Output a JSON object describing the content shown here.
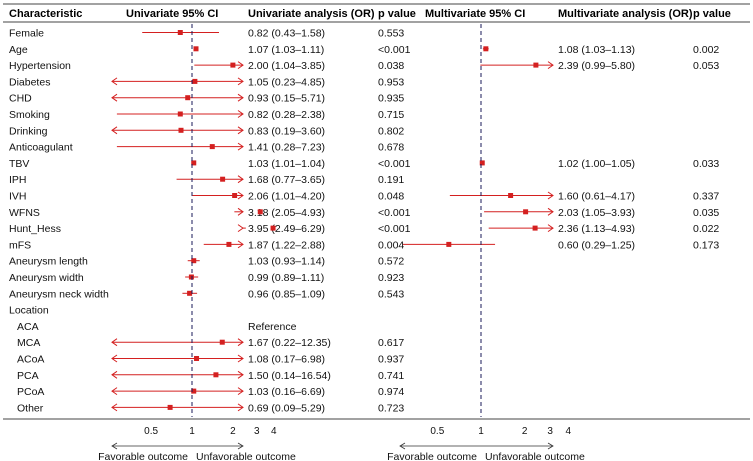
{
  "chart_data": {
    "type": "forest",
    "title": "",
    "columns": {
      "characteristic": "Characteristic",
      "uni_ci": "Univariate 95% CI",
      "uni_or": "Univariate analysis (OR)",
      "uni_p": "p value",
      "multi_ci": "Multivariate 95% CI",
      "multi_or": "Multivariate analysis (OR)",
      "multi_p": "p value"
    },
    "rows": [
      {
        "label": "Female",
        "indent": false,
        "uni": {
          "or": 0.82,
          "lo": 0.43,
          "hi": 1.58,
          "text": "0.82 (0.43–1.58)",
          "p": "0.553"
        },
        "multi": null
      },
      {
        "label": "Age",
        "indent": false,
        "uni": {
          "or": 1.07,
          "lo": 1.03,
          "hi": 1.11,
          "text": "1.07 (1.03–1.11)",
          "p": "<0.001"
        },
        "multi": {
          "or": 1.08,
          "lo": 1.03,
          "hi": 1.13,
          "text": "1.08 (1.03–1.13)",
          "p": "0.002"
        }
      },
      {
        "label": "Hypertension",
        "indent": false,
        "uni": {
          "or": 2.0,
          "lo": 1.04,
          "hi": 3.85,
          "text": "2.00 (1.04–3.85)",
          "p": "0.038"
        },
        "multi": {
          "or": 2.39,
          "lo": 0.99,
          "hi": 5.8,
          "text": "2.39 (0.99–5.80)",
          "p": "0.053"
        }
      },
      {
        "label": "Diabetes",
        "indent": false,
        "uni": {
          "or": 1.05,
          "lo": 0.23,
          "hi": 4.85,
          "text": "1.05 (0.23–4.85)",
          "p": "0.953"
        },
        "multi": null
      },
      {
        "label": "CHD",
        "indent": false,
        "uni": {
          "or": 0.93,
          "lo": 0.15,
          "hi": 5.71,
          "text": "0.93 (0.15–5.71)",
          "p": "0.935"
        },
        "multi": null
      },
      {
        "label": "Smoking",
        "indent": false,
        "uni": {
          "or": 0.82,
          "lo": 0.28,
          "hi": 2.38,
          "text": "0.82 (0.28–2.38)",
          "p": "0.715"
        },
        "multi": null
      },
      {
        "label": "Drinking",
        "indent": false,
        "uni": {
          "or": 0.83,
          "lo": 0.19,
          "hi": 3.6,
          "text": "0.83 (0.19–3.60)",
          "p": "0.802"
        },
        "multi": null
      },
      {
        "label": "Anticoagulant",
        "indent": false,
        "uni": {
          "or": 1.41,
          "lo": 0.28,
          "hi": 7.23,
          "text": "1.41 (0.28–7.23)",
          "p": "0.678"
        },
        "multi": null
      },
      {
        "label": "TBV",
        "indent": false,
        "uni": {
          "or": 1.03,
          "lo": 1.01,
          "hi": 1.04,
          "text": "1.03 (1.01–1.04)",
          "p": "<0.001"
        },
        "multi": {
          "or": 1.02,
          "lo": 1.0,
          "hi": 1.05,
          "text": "1.02 (1.00–1.05)",
          "p": "0.033"
        }
      },
      {
        "label": "IPH",
        "indent": false,
        "uni": {
          "or": 1.68,
          "lo": 0.77,
          "hi": 3.65,
          "text": "1.68 (0.77–3.65)",
          "p": "0.191"
        },
        "multi": null
      },
      {
        "label": "IVH",
        "indent": false,
        "uni": {
          "or": 2.06,
          "lo": 1.01,
          "hi": 4.2,
          "text": "2.06 (1.01–4.20)",
          "p": "0.048"
        },
        "multi": {
          "or": 1.6,
          "lo": 0.61,
          "hi": 4.17,
          "text": "1.60 (0.61–4.17)",
          "p": "0.337"
        }
      },
      {
        "label": "WFNS",
        "indent": false,
        "uni": {
          "or": 3.18,
          "lo": 2.05,
          "hi": 4.93,
          "text": "3.18 (2.05–4.93)",
          "p": "<0.001"
        },
        "multi": {
          "or": 2.03,
          "lo": 1.05,
          "hi": 3.93,
          "text": "2.03 (1.05–3.93)",
          "p": "0.035"
        }
      },
      {
        "label": "Hunt_Hess",
        "indent": false,
        "uni": {
          "or": 3.95,
          "lo": 2.49,
          "hi": 6.29,
          "text": "3.95 (2.49–6.29)",
          "p": "<0.001"
        },
        "multi": {
          "or": 2.36,
          "lo": 1.13,
          "hi": 4.93,
          "text": "2.36 (1.13–4.93)",
          "p": "0.022"
        }
      },
      {
        "label": "mFS",
        "indent": false,
        "uni": {
          "or": 1.87,
          "lo": 1.22,
          "hi": 2.88,
          "text": "1.87 (1.22–2.88)",
          "p": "0.004"
        },
        "multi": {
          "or": 0.6,
          "lo": 0.29,
          "hi": 1.25,
          "text": "0.60 (0.29–1.25)",
          "p": "0.173"
        }
      },
      {
        "label": "Aneurysm length",
        "indent": false,
        "uni": {
          "or": 1.03,
          "lo": 0.93,
          "hi": 1.14,
          "text": "1.03 (0.93–1.14)",
          "p": "0.572"
        },
        "multi": null
      },
      {
        "label": "Aneurysm width",
        "indent": false,
        "uni": {
          "or": 0.99,
          "lo": 0.89,
          "hi": 1.11,
          "text": "0.99 (0.89–1.11)",
          "p": "0.923"
        },
        "multi": null
      },
      {
        "label": "Aneurysm neck width",
        "indent": false,
        "uni": {
          "or": 0.96,
          "lo": 0.85,
          "hi": 1.09,
          "text": "0.96 (0.85–1.09)",
          "p": "0.543"
        },
        "multi": null
      },
      {
        "label": "Location",
        "indent": false,
        "uni": null,
        "multi": null
      },
      {
        "label": "ACA",
        "indent": true,
        "uni": {
          "or": null,
          "lo": null,
          "hi": null,
          "text": "Reference",
          "p": ""
        },
        "multi": null
      },
      {
        "label": "MCA",
        "indent": true,
        "uni": {
          "or": 1.67,
          "lo": 0.22,
          "hi": 12.35,
          "text": "1.67 (0.22–12.35)",
          "p": "0.617"
        },
        "multi": null
      },
      {
        "label": "ACoA",
        "indent": true,
        "uni": {
          "or": 1.08,
          "lo": 0.17,
          "hi": 6.98,
          "text": "1.08 (0.17–6.98)",
          "p": "0.937"
        },
        "multi": null
      },
      {
        "label": "PCA",
        "indent": true,
        "uni": {
          "or": 1.5,
          "lo": 0.14,
          "hi": 16.54,
          "text": "1.50 (0.14–16.54)",
          "p": "0.741"
        },
        "multi": null
      },
      {
        "label": "PCoA",
        "indent": true,
        "uni": {
          "or": 1.03,
          "lo": 0.16,
          "hi": 6.69,
          "text": "1.03 (0.16–6.69)",
          "p": "0.974"
        },
        "multi": null
      },
      {
        "label": "Other",
        "indent": true,
        "uni": {
          "or": 0.69,
          "lo": 0.09,
          "hi": 5.29,
          "text": "0.69 (0.09–5.29)",
          "p": "0.723"
        },
        "multi": null
      }
    ],
    "xaxis": {
      "scale": "log",
      "reference": 1,
      "ticks": [
        0.5,
        1,
        2,
        3,
        4
      ],
      "tick_labels": [
        "0.5",
        "1",
        "2",
        "3",
        "4"
      ],
      "left_label": "Favorable outcome",
      "right_label": "Unfavorable outcome"
    },
    "colors": {
      "marker": "#d42020",
      "line": "#d42020",
      "text": "#111111",
      "rule": "#444444",
      "ref_line": "#1a1a5a"
    }
  }
}
